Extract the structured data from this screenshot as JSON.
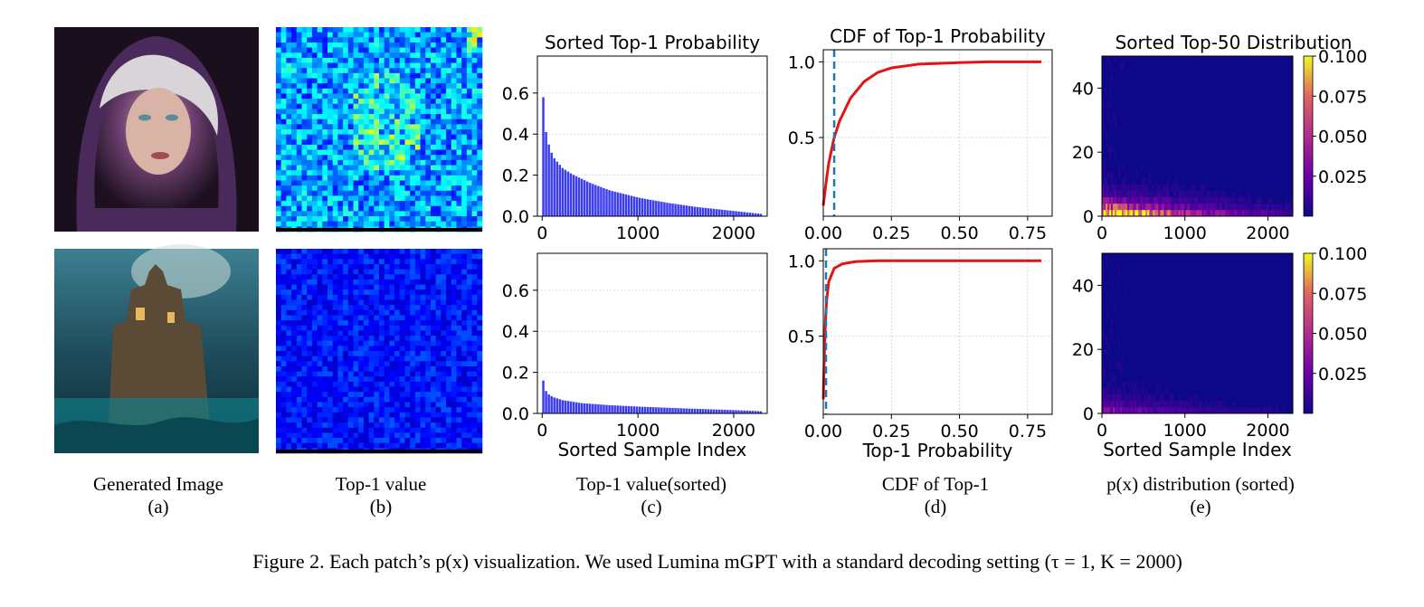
{
  "panels": {
    "a": {
      "caption": "Generated Image",
      "letter": "(a)"
    },
    "b": {
      "caption": "Top-1 value",
      "letter": "(b)"
    },
    "c": {
      "caption": "Top-1 value(sorted)",
      "letter": "(c)"
    },
    "d": {
      "caption": "CDF of Top-1",
      "letter": "(d)"
    },
    "e": {
      "caption": "p(x) distribution (sorted)",
      "letter": "(e)"
    }
  },
  "figure_caption": "Figure 2. Each patch’s p(x) visualization. We used Lumina mGPT with a standard decoding setting (τ = 1, K = 2000)",
  "chart_data": [
    {
      "id": "sorted-top1-row1",
      "type": "bar",
      "title": "Sorted Top-1 Probability",
      "xlabel": "",
      "ylabel": "",
      "xlim": [
        -50,
        2350
      ],
      "ylim": [
        0,
        0.78
      ],
      "xticks": [
        0,
        1000,
        2000
      ],
      "yticks": [
        0.0,
        0.2,
        0.4,
        0.6
      ],
      "grid": "y",
      "color": "#3b3bf0",
      "points": [
        [
          0,
          0.58
        ],
        [
          20,
          0.43
        ],
        [
          50,
          0.36
        ],
        [
          100,
          0.29
        ],
        [
          200,
          0.235
        ],
        [
          300,
          0.205
        ],
        [
          500,
          0.16
        ],
        [
          700,
          0.125
        ],
        [
          1000,
          0.09
        ],
        [
          1300,
          0.065
        ],
        [
          1600,
          0.045
        ],
        [
          2000,
          0.025
        ],
        [
          2300,
          0.01
        ]
      ]
    },
    {
      "id": "sorted-top1-row2",
      "type": "bar",
      "title": "",
      "xlabel": "Sorted Sample Index",
      "ylabel": "",
      "xlim": [
        -50,
        2350
      ],
      "ylim": [
        0,
        0.78
      ],
      "xticks": [
        0,
        1000,
        2000
      ],
      "yticks": [
        0.0,
        0.2,
        0.4,
        0.6
      ],
      "grid": "y",
      "color": "#3b3bf0",
      "points": [
        [
          0,
          0.16
        ],
        [
          20,
          0.115
        ],
        [
          50,
          0.095
        ],
        [
          100,
          0.08
        ],
        [
          200,
          0.065
        ],
        [
          400,
          0.05
        ],
        [
          700,
          0.04
        ],
        [
          1000,
          0.033
        ],
        [
          1500,
          0.024
        ],
        [
          2000,
          0.016
        ],
        [
          2300,
          0.01
        ]
      ]
    },
    {
      "id": "cdf-top1-row1",
      "type": "line",
      "title": "CDF of Top-1 Probability",
      "xlabel": "",
      "ylabel": "",
      "xlim": [
        0,
        0.84
      ],
      "ylim": [
        -0.02,
        1.08
      ],
      "xticks": [
        0.0,
        0.25,
        0.5,
        0.75
      ],
      "yticks": [
        0.5,
        1.0
      ],
      "grid": "both",
      "vline": 0.04,
      "points": [
        [
          0.0,
          0.05
        ],
        [
          0.01,
          0.2
        ],
        [
          0.02,
          0.33
        ],
        [
          0.04,
          0.5
        ],
        [
          0.06,
          0.61
        ],
        [
          0.1,
          0.76
        ],
        [
          0.15,
          0.87
        ],
        [
          0.2,
          0.93
        ],
        [
          0.25,
          0.96
        ],
        [
          0.35,
          0.985
        ],
        [
          0.5,
          0.995
        ],
        [
          0.6,
          1.0
        ],
        [
          0.8,
          1.0
        ]
      ]
    },
    {
      "id": "cdf-top1-row2",
      "type": "line",
      "title": "",
      "xlabel": "Top-1 Probability",
      "ylabel": "",
      "xlim": [
        0,
        0.84
      ],
      "ylim": [
        -0.02,
        1.08
      ],
      "xticks": [
        0.0,
        0.25,
        0.5,
        0.75
      ],
      "yticks": [
        0.5,
        1.0
      ],
      "grid": "both",
      "vline": 0.01,
      "points": [
        [
          0.0,
          0.08
        ],
        [
          0.005,
          0.45
        ],
        [
          0.01,
          0.7
        ],
        [
          0.02,
          0.86
        ],
        [
          0.04,
          0.95
        ],
        [
          0.07,
          0.98
        ],
        [
          0.12,
          0.995
        ],
        [
          0.2,
          1.0
        ],
        [
          0.8,
          1.0
        ]
      ]
    },
    {
      "id": "sorted-top50-row1",
      "type": "heatmap",
      "title": "Sorted Top-50 Distribution",
      "xlabel": "",
      "ylabel": "",
      "xlim": [
        0,
        2300
      ],
      "ylim": [
        0,
        50
      ],
      "xticks": [
        0,
        1000,
        2000
      ],
      "yticks": [
        0,
        20,
        40
      ],
      "colormap": "plasma",
      "colorbar": {
        "min": 0.0,
        "max": 0.1,
        "ticks": [
          0.025,
          0.05,
          0.075,
          0.1
        ],
        "labels": [
          "0.025",
          "0.050",
          "0.075",
          "0.100"
        ]
      },
      "intensity": 1.0
    },
    {
      "id": "sorted-top50-row2",
      "type": "heatmap",
      "title": "",
      "xlabel": "Sorted Sample Index",
      "ylabel": "",
      "xlim": [
        0,
        2300
      ],
      "ylim": [
        0,
        50
      ],
      "xticks": [
        0,
        1000,
        2000
      ],
      "yticks": [
        0,
        20,
        40
      ],
      "colormap": "plasma",
      "colorbar": {
        "min": 0.0,
        "max": 0.1,
        "ticks": [
          0.025,
          0.05,
          0.075,
          0.1
        ],
        "labels": [
          "0.025",
          "0.050",
          "0.075",
          "0.100"
        ]
      },
      "intensity": 0.25
    }
  ]
}
